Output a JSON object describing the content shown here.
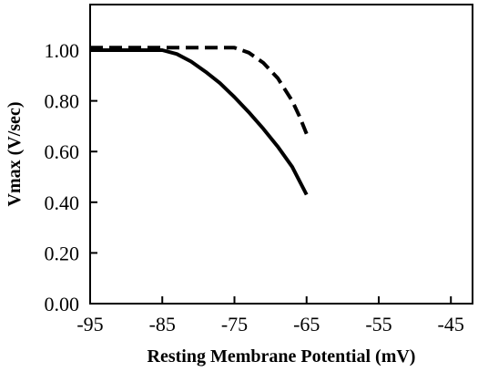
{
  "chart_data": {
    "type": "line",
    "title": "",
    "xlabel": "Resting Membrane Potential (mV)",
    "ylabel": "Vmax (V/sec)",
    "xlim": [
      -95,
      -42
    ],
    "ylim": [
      0.0,
      1.18
    ],
    "x_ticks": [
      -95,
      -85,
      -75,
      -65,
      -55,
      -45
    ],
    "x_tick_labels": [
      "-95",
      "-85",
      "-75",
      "-65",
      "-55",
      "-45"
    ],
    "y_ticks": [
      0.0,
      0.2,
      0.4,
      0.6,
      0.8,
      1.0
    ],
    "y_tick_labels": [
      "0.00",
      "0.20",
      "0.40",
      "0.60",
      "0.80",
      "1.00"
    ],
    "grid": false,
    "legend": "none",
    "series": [
      {
        "style": "solid",
        "color": "#000000",
        "x": [
          -95,
          -85,
          -83,
          -81,
          -79,
          -77,
          -75,
          -73,
          -71,
          -69,
          -67,
          -65
        ],
        "y": [
          1.0,
          1.0,
          0.985,
          0.955,
          0.915,
          0.87,
          0.815,
          0.755,
          0.69,
          0.62,
          0.54,
          0.43
        ]
      },
      {
        "style": "dashed",
        "color": "#000000",
        "x": [
          -95,
          -75,
          -73,
          -71,
          -69,
          -67,
          -66,
          -65
        ],
        "y": [
          1.01,
          1.01,
          0.99,
          0.95,
          0.89,
          0.8,
          0.74,
          0.67
        ]
      }
    ]
  }
}
